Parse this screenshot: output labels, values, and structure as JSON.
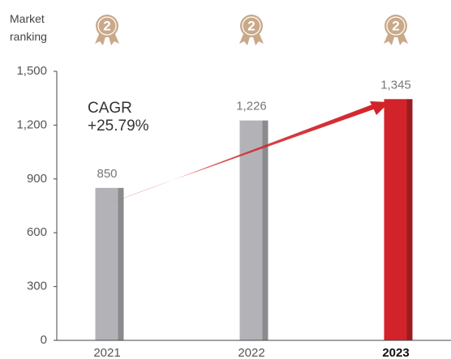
{
  "chart_data": {
    "type": "bar",
    "rank_label": "Market ranking",
    "rankings": [
      2,
      2,
      2
    ],
    "annotation": {
      "title": "CAGR",
      "value": "+25.79%"
    },
    "categories": [
      "2021",
      "2022",
      "2023"
    ],
    "values": [
      850,
      1226,
      1345
    ],
    "value_labels": [
      "850",
      "1,226",
      "1,345"
    ],
    "colors": [
      "#b3b3b7",
      "#b3b3b7",
      "#d2232a"
    ],
    "highlight": "2023",
    "ylim": [
      0,
      1500
    ],
    "yticks": [
      0,
      300,
      600,
      900,
      {
        "value": 1200,
        "label": "1,200"
      },
      {
        "value": 1500,
        "label": "1,500"
      }
    ]
  }
}
